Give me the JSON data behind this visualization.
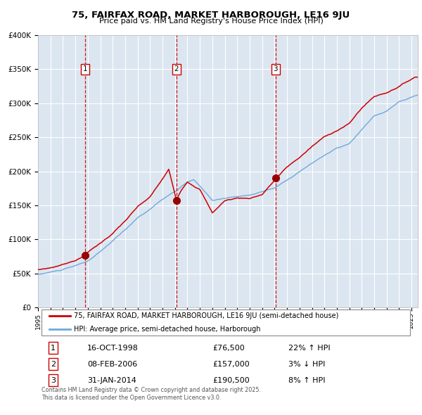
{
  "title1": "75, FAIRFAX ROAD, MARKET HARBOROUGH, LE16 9JU",
  "title2": "Price paid vs. HM Land Registry's House Price Index (HPI)",
  "legend_line1": "75, FAIRFAX ROAD, MARKET HARBOROUGH, LE16 9JU (semi-detached house)",
  "legend_line2": "HPI: Average price, semi-detached house, Harborough",
  "transactions": [
    {
      "num": 1,
      "date_label": "16-OCT-1998",
      "date_x": 1998.79,
      "price": 76500,
      "hpi_pct": "22% ↑ HPI"
    },
    {
      "num": 2,
      "date_label": "08-FEB-2006",
      "date_x": 2006.11,
      "price": 157000,
      "hpi_pct": "3% ↓ HPI"
    },
    {
      "num": 3,
      "date_label": "31-JAN-2014",
      "date_x": 2014.08,
      "price": 190500,
      "hpi_pct": "8% ↑ HPI"
    }
  ],
  "ylim": [
    0,
    400000
  ],
  "xlim_start": 1995.0,
  "xlim_end": 2025.5,
  "yticks": [
    0,
    50000,
    100000,
    150000,
    200000,
    250000,
    300000,
    350000,
    400000
  ],
  "ytick_labels": [
    "£0",
    "£50K",
    "£100K",
    "£150K",
    "£200K",
    "£250K",
    "£300K",
    "£350K",
    "£400K"
  ],
  "hpi_color": "#6fa8dc",
  "price_color": "#cc0000",
  "marker_color": "#990000",
  "vline_color": "#cc0000",
  "bg_color": "#dce6f1",
  "grid_color": "#ffffff",
  "footnote": "Contains HM Land Registry data © Crown copyright and database right 2025.\nThis data is licensed under the Open Government Licence v3.0."
}
